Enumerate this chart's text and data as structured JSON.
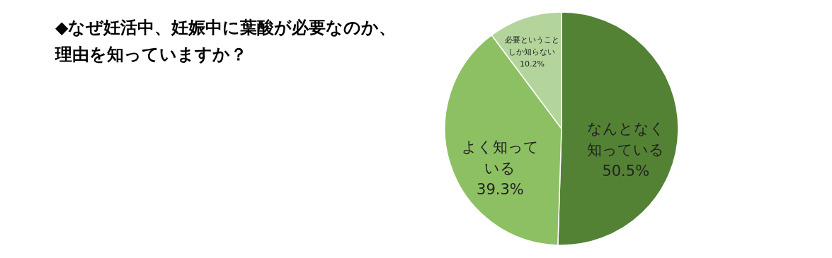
{
  "chart_data": {
    "type": "pie",
    "title": "◆なぜ妊活中、妊娠中に葉酸が必要なのか、理由を知っていますか？",
    "categories": [
      "なんとなく知っている",
      "よく知っている",
      "必要ということしか知らない"
    ],
    "values": [
      50.5,
      39.3,
      10.2
    ],
    "value_labels": [
      "50.5%",
      "39.3%",
      "10.2%"
    ],
    "colors": [
      "#548235",
      "#8dc063",
      "#b3d59b"
    ]
  }
}
